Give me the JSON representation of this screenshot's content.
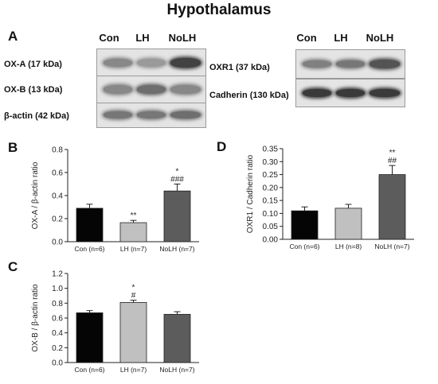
{
  "figure": {
    "title": "Hypothalamus",
    "panels": {
      "A": "A",
      "B": "B",
      "C": "C",
      "D": "D"
    },
    "groups": [
      "Con",
      "LH",
      "NoLH"
    ]
  },
  "blots": {
    "left": [
      {
        "label": "OX-A (17 kDa)",
        "intensity": [
          0.45,
          0.35,
          0.85
        ]
      },
      {
        "label": "OX-B (13 kDa)",
        "intensity": [
          0.45,
          0.6,
          0.45
        ]
      },
      {
        "label": "β-actin (42 kDa)",
        "intensity": [
          0.55,
          0.55,
          0.6
        ]
      }
    ],
    "right": [
      {
        "label": "OXR1 (37 kDa)",
        "intensity": [
          0.5,
          0.55,
          0.75
        ]
      },
      {
        "label": "Cadherin (130 kDa)",
        "intensity": [
          0.9,
          0.9,
          0.9
        ]
      }
    ]
  },
  "chart_data": [
    {
      "panel": "B",
      "type": "bar",
      "categories": [
        "Con (n=6)",
        "LH (n=7)",
        "NoLH (n=7)"
      ],
      "values": [
        0.29,
        0.165,
        0.44
      ],
      "errors": [
        0.035,
        0.02,
        0.06
      ],
      "annotations": [
        "",
        "**",
        "*\n###"
      ],
      "ylabel": "OX-A / β-actin ratio",
      "ylim": [
        0,
        0.8
      ],
      "yticks": [
        "0.0",
        "0.2",
        "0.4",
        "0.6",
        "0.8"
      ],
      "colors": [
        "#050505",
        "#c0c0c0",
        "#5c5c5c"
      ]
    },
    {
      "panel": "C",
      "type": "bar",
      "categories": [
        "Con (n=6)",
        "LH (n=7)",
        "NoLH (n=7)"
      ],
      "values": [
        0.67,
        0.81,
        0.65
      ],
      "errors": [
        0.03,
        0.03,
        0.035
      ],
      "annotations": [
        "",
        "*\n#",
        ""
      ],
      "ylabel": "OX-B / β-actin ratio",
      "ylim": [
        0,
        1.2
      ],
      "yticks": [
        "0.0",
        "0.2",
        "0.4",
        "0.6",
        "0.8",
        "1.0",
        "1.2"
      ],
      "colors": [
        "#050505",
        "#c0c0c0",
        "#5c5c5c"
      ]
    },
    {
      "panel": "D",
      "type": "bar",
      "categories": [
        "Con (n=6)",
        "LH (n=8)",
        "NoLH (n=7)"
      ],
      "values": [
        0.11,
        0.12,
        0.25
      ],
      "errors": [
        0.015,
        0.015,
        0.035
      ],
      "annotations": [
        "",
        "",
        "**\n##"
      ],
      "ylabel": "OXR1 / Cadherin ratio",
      "ylim": [
        0,
        0.35
      ],
      "yticks": [
        "0.00",
        "0.05",
        "0.10",
        "0.15",
        "0.20",
        "0.25",
        "0.30",
        "0.35"
      ],
      "colors": [
        "#050505",
        "#c0c0c0",
        "#5c5c5c"
      ]
    }
  ]
}
